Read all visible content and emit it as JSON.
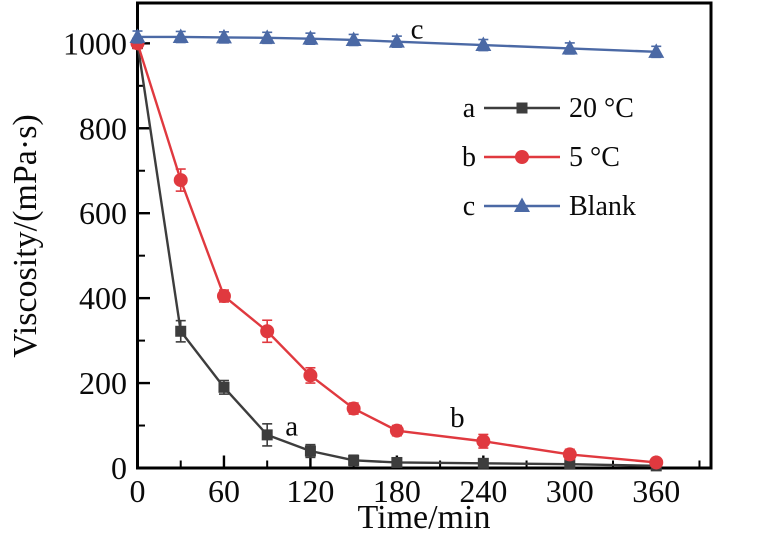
{
  "figure": {
    "background": "#ffffff",
    "frame_color": "#000000",
    "text_color": "#0a0a0a"
  },
  "chart_data": {
    "type": "line",
    "title": "",
    "xlabel": "Time/min",
    "ylabel": "Viscosity/(mPa·s)",
    "xlim": [
      0,
      398
    ],
    "ylim": [
      0,
      1095
    ],
    "x_major_ticks": [
      0,
      60,
      120,
      180,
      240,
      300,
      360
    ],
    "x_minor_ticks": [
      30,
      90,
      150,
      210,
      270,
      330,
      390
    ],
    "y_major_ticks": [
      0,
      200,
      400,
      600,
      800,
      1000
    ],
    "y_minor_ticks": [
      100,
      300,
      500,
      700,
      900
    ],
    "grid": false,
    "legend_position": "upper-right-inside",
    "x": [
      0,
      30,
      60,
      90,
      120,
      150,
      180,
      240,
      300,
      360
    ],
    "series": [
      {
        "legend_letter": "a",
        "name": "20 °C",
        "marker": "square",
        "color": "#3d3d3d",
        "values": [
          1000,
          322,
          190,
          78,
          40,
          18,
          13,
          11,
          9,
          5
        ],
        "errors": [
          12,
          25,
          16,
          26,
          15,
          12,
          9,
          9,
          8,
          5
        ]
      },
      {
        "legend_letter": "b",
        "name": "5 °C",
        "marker": "circle",
        "color": "#e0393f",
        "values": [
          1000,
          678,
          405,
          322,
          218,
          140,
          88,
          63,
          32,
          13
        ],
        "errors": [
          12,
          26,
          14,
          26,
          18,
          13,
          12,
          16,
          12,
          9
        ]
      },
      {
        "legend_letter": "c",
        "name": "Blank",
        "marker": "triangle",
        "color": "#4b69a5",
        "values": [
          1015,
          1015,
          1014,
          1013,
          1011,
          1008,
          1004,
          996,
          988,
          980
        ],
        "errors": [
          14,
          13,
          13,
          13,
          13,
          13,
          13,
          13,
          13,
          13
        ]
      }
    ],
    "annotations": [
      {
        "text": "a",
        "t": 107,
        "v": 100
      },
      {
        "text": "b",
        "t": 222,
        "v": 120
      },
      {
        "text": "c",
        "t": 194,
        "v": 1035
      }
    ]
  }
}
